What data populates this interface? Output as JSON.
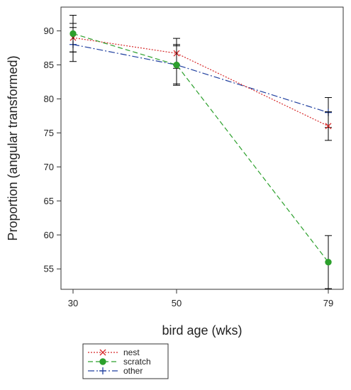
{
  "chart_data": {
    "type": "line",
    "title": "",
    "xlabel": "bird age (wks)",
    "ylabel": "Proportion (angular transformed)",
    "x": [
      30,
      50,
      79
    ],
    "x_tick_labels": [
      "30",
      "50",
      "79"
    ],
    "y_ticks": [
      55,
      60,
      65,
      70,
      75,
      80,
      85,
      90
    ],
    "ylim": [
      52,
      93.5
    ],
    "grid": false,
    "legend_position": "bottom-left, below plot",
    "series": [
      {
        "name": "nest",
        "values": [
          89.0,
          86.7,
          76.0
        ],
        "error": [
          2.1,
          2.2,
          2.1
        ],
        "color": "#d62728",
        "line_style": "dotted",
        "marker": "x"
      },
      {
        "name": "scratch",
        "values": [
          89.6,
          85.0,
          56.0
        ],
        "error": [
          2.7,
          3.0,
          3.9
        ],
        "color": "#2ca02c",
        "line_style": "dashed",
        "marker": "circle"
      },
      {
        "name": "other",
        "values": [
          88.0,
          85.0,
          78.0
        ],
        "error": [
          2.5,
          2.8,
          2.2
        ],
        "color": "#1f3f9f",
        "line_style": "dash-dot",
        "marker": "plus"
      }
    ]
  }
}
